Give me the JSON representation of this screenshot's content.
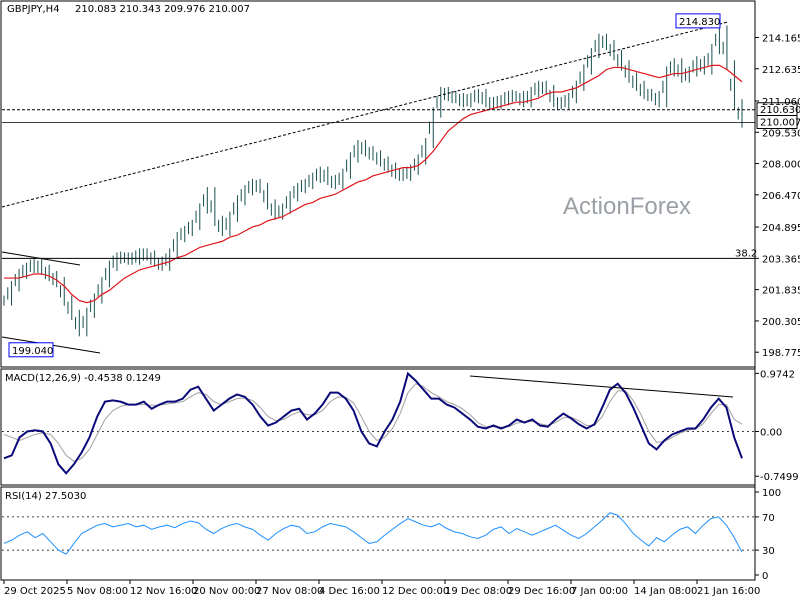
{
  "header": {
    "symbol": "GBPJPY,H4",
    "ohlc": "210.083 210.343 209.976 210.007"
  },
  "watermark": "ActionForex",
  "colors": {
    "price_bars": "#1a4f4f",
    "moving_average": "#e0151b",
    "macd_line": "#0a0a7a",
    "macd_signal": "#a0a0a0",
    "rsi_line": "#1e90ff",
    "grid": "#000000",
    "label_box_border": "#0000ff"
  },
  "chart_data": [
    {
      "type": "line",
      "panel": "price",
      "series": [
        {
          "values": [
            201.3,
            202.0,
            202.6,
            202.9,
            203.1,
            202.8,
            202.5,
            202.2,
            201.3,
            200.6,
            199.8,
            200.7,
            201.4,
            202.2,
            203.0,
            203.4,
            203.4,
            203.3,
            203.6,
            203.5,
            203.2,
            203.0,
            203.6,
            204.4,
            204.7,
            205.0,
            205.8,
            206.6,
            205.2,
            204.7,
            205.4,
            206.2,
            206.7,
            207.0,
            206.8,
            206.0,
            205.5,
            205.8,
            206.4,
            206.8,
            207.0,
            207.3,
            207.6,
            207.2,
            207.0,
            207.5,
            208.3,
            208.9,
            208.6,
            208.4,
            208.1,
            207.8,
            207.5,
            207.4,
            207.7,
            208.2,
            209.0,
            210.5,
            211.5,
            211.3,
            211.2,
            211.0,
            211.2,
            211.4,
            211.0,
            210.9,
            211.1,
            211.3,
            211.3,
            211.0,
            211.5,
            211.8,
            211.6,
            211.0,
            210.9,
            211.2,
            211.8,
            212.6,
            213.4,
            214.1,
            213.8,
            213.3,
            212.8,
            212.2,
            211.8,
            211.4,
            211.3,
            211.0,
            212.5,
            212.9,
            212.2,
            212.5,
            213.0,
            212.6,
            213.6,
            214.5,
            212.8,
            210.9,
            210.007
          ]
        },
        {
          "values": [
            202.4,
            202.4,
            202.4,
            202.5,
            202.6,
            202.6,
            202.5,
            202.3,
            202.0,
            201.6,
            201.3,
            201.2,
            201.3,
            201.6,
            201.8,
            202.1,
            202.4,
            202.6,
            202.8,
            202.9,
            203.0,
            203.1,
            203.2,
            203.4,
            203.5,
            203.7,
            203.9,
            204.0,
            204.1,
            204.2,
            204.4,
            204.5,
            204.7,
            204.9,
            205.0,
            205.2,
            205.3,
            205.4,
            205.6,
            205.8,
            206.0,
            206.1,
            206.3,
            206.4,
            206.5,
            206.7,
            206.9,
            207.1,
            207.2,
            207.4,
            207.5,
            207.6,
            207.7,
            207.8,
            207.8,
            207.9,
            208.2,
            208.6,
            209.1,
            209.6,
            209.9,
            210.2,
            210.4,
            210.5,
            210.6,
            210.7,
            210.8,
            210.9,
            211.0,
            211.0,
            211.1,
            211.2,
            211.4,
            211.5,
            211.5,
            211.6,
            211.7,
            211.9,
            212.1,
            212.3,
            212.6,
            212.7,
            212.7,
            212.6,
            212.5,
            212.4,
            212.3,
            212.2,
            212.3,
            212.4,
            212.4,
            212.5,
            212.6,
            212.7,
            212.8,
            212.8,
            212.6,
            212.3,
            212.0
          ]
        }
      ],
      "ylim": [
        198.1,
        215.9
      ],
      "y_ticks": [
        "214.165",
        "212.635",
        "211.060",
        "209.530",
        "208.000",
        "206.470",
        "204.895",
        "203.365",
        "201.835",
        "200.305",
        "198.775"
      ],
      "x_ticks": [
        "29 Oct 2025",
        "5 Nov 08:00",
        "12 Nov 16:00",
        "20 Nov 00:00",
        "27 Nov 08:00",
        "4 Dec 16:00",
        "12 Dec 00:00",
        "19 Dec 08:00",
        "29 Dec 16:00",
        "7 Jan 00:00",
        "14 Jan 08:00",
        "21 Jan 16:00"
      ],
      "annotations": {
        "high_label": "214.830",
        "low_label": "199.040",
        "fib_label": "38.2",
        "fib_level": 203.365,
        "horizontal_level": 210.63,
        "current_price": "210.007",
        "level_label": "210.630"
      }
    },
    {
      "type": "line",
      "panel": "macd",
      "title": "MACD(12,26,9) -0.4538 0.1249",
      "series": [
        {
          "values": [
            -0.45,
            -0.4,
            -0.1,
            0.0,
            0.02,
            0.0,
            -0.2,
            -0.55,
            -0.7,
            -0.55,
            -0.35,
            -0.1,
            0.25,
            0.5,
            0.52,
            0.5,
            0.45,
            0.45,
            0.5,
            0.38,
            0.45,
            0.5,
            0.5,
            0.55,
            0.7,
            0.75,
            0.55,
            0.35,
            0.45,
            0.55,
            0.62,
            0.58,
            0.45,
            0.25,
            0.1,
            0.15,
            0.25,
            0.35,
            0.38,
            0.2,
            0.3,
            0.45,
            0.65,
            0.65,
            0.55,
            0.35,
            0.0,
            -0.2,
            -0.25,
            0.0,
            0.2,
            0.5,
            0.97,
            0.85,
            0.7,
            0.55,
            0.55,
            0.45,
            0.4,
            0.3,
            0.2,
            0.08,
            0.05,
            0.1,
            0.05,
            0.1,
            0.2,
            0.15,
            0.2,
            0.1,
            0.08,
            0.2,
            0.3,
            0.22,
            0.12,
            0.05,
            0.12,
            0.4,
            0.7,
            0.8,
            0.65,
            0.4,
            0.1,
            -0.2,
            -0.3,
            -0.15,
            -0.05,
            0.0,
            0.05,
            0.05,
            0.2,
            0.4,
            0.55,
            0.4,
            -0.1,
            -0.45
          ]
        },
        {
          "values": [
            -0.05,
            -0.1,
            -0.15,
            -0.1,
            -0.05,
            -0.02,
            -0.05,
            -0.2,
            -0.4,
            -0.5,
            -0.45,
            -0.3,
            -0.05,
            0.2,
            0.35,
            0.42,
            0.45,
            0.45,
            0.45,
            0.44,
            0.44,
            0.46,
            0.48,
            0.5,
            0.58,
            0.65,
            0.62,
            0.5,
            0.45,
            0.5,
            0.55,
            0.56,
            0.52,
            0.4,
            0.25,
            0.18,
            0.2,
            0.28,
            0.33,
            0.28,
            0.28,
            0.35,
            0.5,
            0.58,
            0.57,
            0.48,
            0.25,
            0.0,
            -0.15,
            -0.1,
            0.05,
            0.3,
            0.65,
            0.8,
            0.75,
            0.65,
            0.58,
            0.5,
            0.45,
            0.38,
            0.28,
            0.15,
            0.08,
            0.08,
            0.07,
            0.08,
            0.14,
            0.16,
            0.17,
            0.13,
            0.1,
            0.15,
            0.23,
            0.24,
            0.18,
            0.1,
            0.1,
            0.25,
            0.5,
            0.68,
            0.68,
            0.52,
            0.28,
            0.0,
            -0.18,
            -0.17,
            -0.1,
            -0.03,
            0.02,
            0.04,
            0.13,
            0.3,
            0.45,
            0.45,
            0.2,
            0.1249
          ]
        }
      ],
      "ylim": [
        -0.88,
        1.03
      ],
      "y_ticks": [
        "0.9742",
        "0.00",
        "-0.7499"
      ],
      "annotations": {
        "trendline": "divergence line from Dec 19 peak to Jan 21 peak"
      }
    },
    {
      "type": "line",
      "panel": "rsi",
      "title": "RSI(14) 27.5030",
      "series": [
        {
          "values": [
            38,
            42,
            48,
            52,
            45,
            50,
            40,
            30,
            25,
            38,
            50,
            55,
            60,
            62,
            58,
            60,
            62,
            58,
            60,
            55,
            58,
            60,
            57,
            62,
            65,
            63,
            55,
            50,
            56,
            60,
            62,
            58,
            55,
            48,
            42,
            50,
            56,
            60,
            58,
            50,
            52,
            58,
            62,
            60,
            58,
            52,
            45,
            38,
            40,
            48,
            55,
            62,
            68,
            64,
            60,
            58,
            62,
            56,
            52,
            50,
            46,
            44,
            48,
            55,
            58,
            50,
            56,
            52,
            48,
            52,
            56,
            60,
            54,
            48,
            44,
            50,
            58,
            66,
            75,
            72,
            62,
            50,
            42,
            35,
            45,
            40,
            48,
            55,
            58,
            50,
            60,
            68,
            70,
            60,
            45,
            27.503
          ]
        }
      ],
      "ylim": [
        0,
        100
      ],
      "y_ticks": [
        "100",
        "70",
        "30",
        "0"
      ]
    }
  ]
}
